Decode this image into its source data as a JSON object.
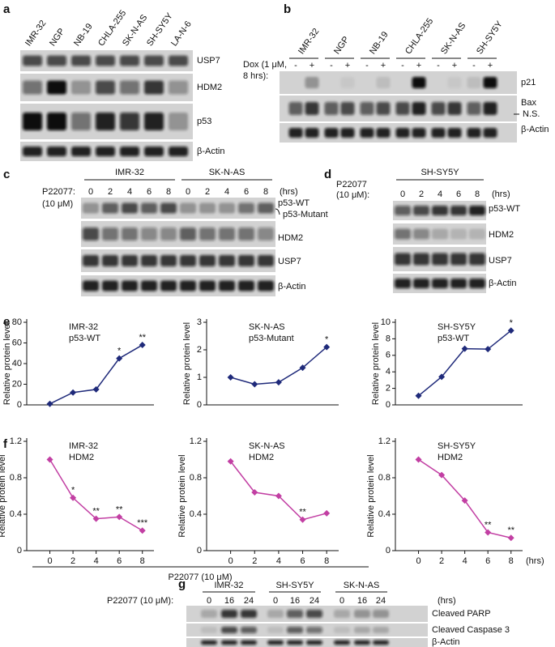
{
  "panels": {
    "a": {
      "letter": "a",
      "lanes": [
        "IMR-32",
        "NGP",
        "NB-19",
        "CHLA-255",
        "SK-N-AS",
        "SH-SY5Y",
        "LA-N-6"
      ],
      "rows": [
        "USP7",
        "HDM2",
        "p53",
        "β-Actin"
      ]
    },
    "b": {
      "letter": "b",
      "lanes": [
        "IMR-32",
        "NGP",
        "NB-19",
        "CHLA-255",
        "SK-N-AS",
        "SH-SY5Y"
      ],
      "treatment": [
        "Dox (1 μM,",
        "8 hrs):"
      ],
      "signs": [
        "-",
        "+",
        "-",
        "+",
        "-",
        "+",
        "-",
        "+",
        "-",
        "+",
        "-",
        "+"
      ],
      "rows": [
        "p21",
        "Bax",
        "N.S.",
        "β-Actin"
      ]
    },
    "c": {
      "letter": "c",
      "treatment": [
        "P22077:",
        "(10 μM)"
      ],
      "groups": [
        {
          "name": "IMR-32",
          "times": [
            0,
            2,
            4,
            6,
            8
          ]
        },
        {
          "name": "SK-N-AS",
          "times": [
            0,
            2,
            4,
            6,
            8
          ]
        }
      ],
      "unit": "(hrs)",
      "rows": [
        "p53-WT",
        "p53-Mutant",
        "HDM2",
        "USP7",
        "β-Actin"
      ]
    },
    "d": {
      "letter": "d",
      "treatment": [
        "P22077",
        "(10 μM):"
      ],
      "groups": [
        {
          "name": "SH-SY5Y",
          "times": [
            0,
            2,
            4,
            6,
            8
          ]
        }
      ],
      "unit": "(hrs)",
      "rows": [
        "p53-WT",
        "HDM2",
        "USP7",
        "β-Actin"
      ]
    },
    "e": {
      "letter": "e"
    },
    "f": {
      "letter": "f",
      "xlabel": "P22077 (10 μM)"
    },
    "g": {
      "letter": "g",
      "treatment": [
        "P22077 (10 μM):"
      ],
      "groups": [
        {
          "name": "IMR-32",
          "times": [
            0,
            16,
            24
          ]
        },
        {
          "name": "SH-SY5Y",
          "times": [
            0,
            16,
            24
          ]
        },
        {
          "name": "SK-N-AS",
          "times": [
            0,
            16,
            24
          ]
        }
      ],
      "unit": "(hrs)",
      "rows": [
        "Cleaved PARP",
        "Cleaved Caspase 3",
        "β-Actin"
      ]
    }
  },
  "chart_data": [
    {
      "type": "line",
      "title": "IMR-32",
      "subtitle": "p53-WT",
      "ylabel": "Relative protein level",
      "x": [
        0,
        2,
        4,
        6,
        8
      ],
      "values": [
        1,
        12,
        15,
        45,
        58
      ],
      "point_labels": [
        null,
        null,
        null,
        "*",
        "**"
      ],
      "color": "#1f2a7a",
      "xlim": [
        -2,
        9
      ],
      "ylim": [
        0,
        80
      ],
      "yticks": [
        0,
        20,
        40,
        60,
        80
      ]
    },
    {
      "type": "line",
      "title": "SK-N-AS",
      "subtitle": "p53-Mutant",
      "ylabel": "Relative protein level",
      "x": [
        0,
        2,
        4,
        6,
        8
      ],
      "values": [
        1.0,
        0.75,
        0.82,
        1.35,
        2.1
      ],
      "point_labels": [
        null,
        null,
        null,
        null,
        "*"
      ],
      "color": "#1f2a7a",
      "xlim": [
        -2,
        9
      ],
      "ylim": [
        0,
        3
      ],
      "yticks": [
        0,
        1,
        2,
        3
      ]
    },
    {
      "type": "line",
      "title": "SH-SY5Y",
      "subtitle": "p53-WT",
      "ylabel": "Relative protein level",
      "x": [
        0,
        2,
        4,
        6,
        8
      ],
      "values": [
        1.1,
        3.4,
        6.8,
        6.75,
        9.0
      ],
      "point_labels": [
        null,
        null,
        null,
        null,
        "*"
      ],
      "color": "#1f2a7a",
      "xlim": [
        -2,
        9
      ],
      "ylim": [
        0,
        10
      ],
      "yticks": [
        0,
        2,
        4,
        6,
        8,
        10
      ]
    },
    {
      "type": "line",
      "title": "IMR-32",
      "subtitle": "HDM2",
      "ylabel": "Relative protein level",
      "x": [
        0,
        2,
        4,
        6,
        8
      ],
      "values": [
        1.0,
        0.58,
        0.35,
        0.37,
        0.22
      ],
      "point_labels": [
        null,
        "*",
        "**",
        "**",
        "***"
      ],
      "color": "#c23fa3",
      "xlim": [
        -2,
        9
      ],
      "ylim": [
        0,
        1.2
      ],
      "yticks": [
        0,
        0.4,
        0.8,
        1.2
      ],
      "xticks": [
        0,
        2,
        4,
        6,
        8
      ]
    },
    {
      "type": "line",
      "title": "SK-N-AS",
      "subtitle": "HDM2",
      "ylabel": "Relative protein level",
      "x": [
        0,
        2,
        4,
        6,
        8
      ],
      "values": [
        0.98,
        0.64,
        0.6,
        0.34,
        0.41
      ],
      "point_labels": [
        null,
        null,
        null,
        "**",
        null
      ],
      "color": "#c23fa3",
      "xlim": [
        -2,
        9
      ],
      "ylim": [
        0,
        1.2
      ],
      "yticks": [
        0,
        0.4,
        0.8,
        1.2
      ],
      "xticks": [
        0,
        2,
        4,
        6,
        8
      ]
    },
    {
      "type": "line",
      "title": "SH-SY5Y",
      "subtitle": "HDM2",
      "ylabel": "Relative protein level",
      "x": [
        0,
        2,
        4,
        6,
        8
      ],
      "values": [
        1.0,
        0.83,
        0.55,
        0.2,
        0.14
      ],
      "point_labels": [
        null,
        null,
        null,
        "**",
        "**"
      ],
      "color": "#c23fa3",
      "xlim": [
        -2,
        9
      ],
      "ylim": [
        0,
        1.2
      ],
      "yticks": [
        0,
        0.4,
        0.8,
        1.2
      ],
      "xticks": [
        0,
        2,
        4,
        6,
        8
      ],
      "xunit": "(hrs)"
    }
  ]
}
